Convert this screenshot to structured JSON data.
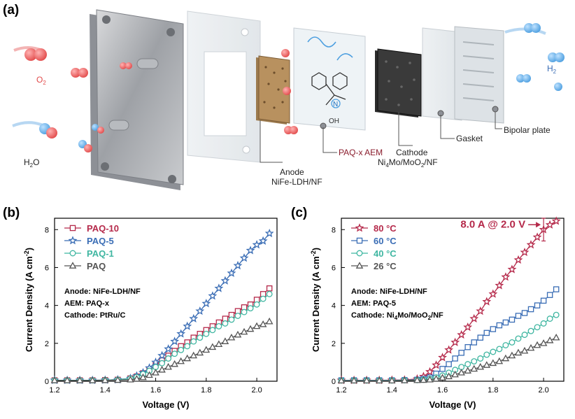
{
  "panels": {
    "a": "(a)",
    "b": "(b)",
    "c": "(c)"
  },
  "schematic": {
    "o2_label": "O",
    "o2_sub": "2",
    "h2o_label_pre": "H",
    "h2o_sub": "2",
    "h2o_label_post": "O",
    "h2_label": "H",
    "h2_sub": "2",
    "oh_label": "OH",
    "n_label": "N",
    "anode_line1": "Anode",
    "anode_line2": "NiFe-LDH/NF",
    "aem_label": "PAQ-x AEM",
    "cathode_line1": "Cathode",
    "cathode_line2_a": "Ni",
    "cathode_line2_sub1": "4",
    "cathode_line2_b": "Mo/MoO",
    "cathode_line2_sub2": "2",
    "cathode_line2_c": "/NF",
    "gasket_label": "Gasket",
    "bipolar_label": "Bipolar plate",
    "colors": {
      "red": "#e24b4b",
      "blue": "#4d9fe0",
      "aem_text": "#8a1c2c"
    }
  },
  "chart_data": [
    {
      "type": "line",
      "xlabel": "Voltage (V)",
      "ylabel_main": "Current Density (A cm",
      "ylabel_sup": "-2",
      "ylabel_end": ")",
      "xlim": [
        1.2,
        2.08
      ],
      "ylim": [
        0,
        8.6
      ],
      "xticks": [
        "1.2",
        "1.4",
        "1.6",
        "1.8",
        "2.0"
      ],
      "xtick_values": [
        1.2,
        1.4,
        1.6,
        1.8,
        2.0
      ],
      "yticks": [
        "0",
        "2",
        "4",
        "6",
        "8"
      ],
      "ytick_values": [
        0,
        2,
        4,
        6,
        8
      ],
      "annotations": [
        {
          "text": "Anode: NiFe-LDH/NF"
        },
        {
          "text": "AEM: PAQ-x"
        },
        {
          "text": "Cathode: PtRu/C"
        }
      ],
      "series": [
        {
          "name": "PAQ-10",
          "color": "#b5294a",
          "marker": "square",
          "x": [
            1.2,
            1.25,
            1.3,
            1.35,
            1.4,
            1.45,
            1.5,
            1.525,
            1.55,
            1.575,
            1.6,
            1.625,
            1.65,
            1.675,
            1.7,
            1.725,
            1.75,
            1.775,
            1.8,
            1.825,
            1.85,
            1.875,
            1.9,
            1.925,
            1.95,
            1.975,
            2.0,
            2.025,
            2.05
          ],
          "y": [
            0.05,
            0.05,
            0.05,
            0.05,
            0.06,
            0.08,
            0.15,
            0.25,
            0.42,
            0.62,
            0.85,
            1.1,
            1.35,
            1.6,
            1.85,
            2.05,
            2.3,
            2.5,
            2.7,
            2.9,
            3.1,
            3.3,
            3.5,
            3.7,
            3.9,
            4.05,
            4.3,
            4.6,
            4.9
          ]
        },
        {
          "name": "PAQ-5",
          "color": "#3a6db5",
          "marker": "star",
          "x": [
            1.2,
            1.25,
            1.3,
            1.35,
            1.4,
            1.45,
            1.5,
            1.525,
            1.55,
            1.575,
            1.6,
            1.625,
            1.65,
            1.675,
            1.7,
            1.725,
            1.75,
            1.775,
            1.8,
            1.825,
            1.85,
            1.875,
            1.9,
            1.925,
            1.95,
            1.975,
            2.0,
            2.025,
            2.05
          ],
          "y": [
            0.05,
            0.05,
            0.05,
            0.05,
            0.06,
            0.08,
            0.15,
            0.28,
            0.45,
            0.7,
            1.0,
            1.35,
            1.7,
            2.1,
            2.5,
            2.9,
            3.3,
            3.7,
            4.1,
            4.5,
            4.9,
            5.3,
            5.7,
            6.1,
            6.5,
            6.9,
            7.2,
            7.4,
            7.8
          ]
        },
        {
          "name": "PAQ-1",
          "color": "#3fb6a1",
          "marker": "circle",
          "x": [
            1.2,
            1.25,
            1.3,
            1.35,
            1.4,
            1.45,
            1.5,
            1.525,
            1.55,
            1.575,
            1.6,
            1.625,
            1.65,
            1.675,
            1.7,
            1.725,
            1.75,
            1.775,
            1.8,
            1.825,
            1.85,
            1.875,
            1.9,
            1.925,
            1.95,
            1.975,
            2.0,
            2.025,
            2.05
          ],
          "y": [
            0.05,
            0.05,
            0.05,
            0.05,
            0.06,
            0.08,
            0.14,
            0.22,
            0.38,
            0.55,
            0.75,
            0.95,
            1.2,
            1.45,
            1.65,
            1.85,
            2.1,
            2.3,
            2.5,
            2.7,
            2.9,
            3.05,
            3.25,
            3.45,
            3.65,
            3.85,
            4.05,
            4.35,
            4.6
          ]
        },
        {
          "name": "PAQ",
          "color": "#555555",
          "marker": "triangle",
          "x": [
            1.2,
            1.25,
            1.3,
            1.35,
            1.4,
            1.45,
            1.5,
            1.525,
            1.55,
            1.575,
            1.6,
            1.625,
            1.65,
            1.675,
            1.7,
            1.725,
            1.75,
            1.775,
            1.8,
            1.825,
            1.85,
            1.875,
            1.9,
            1.925,
            1.95,
            1.975,
            2.0,
            2.025,
            2.05
          ],
          "y": [
            0.04,
            0.04,
            0.04,
            0.04,
            0.05,
            0.06,
            0.08,
            0.12,
            0.2,
            0.32,
            0.45,
            0.6,
            0.75,
            0.9,
            1.05,
            1.2,
            1.35,
            1.5,
            1.65,
            1.8,
            1.95,
            2.1,
            2.3,
            2.45,
            2.6,
            2.75,
            2.9,
            3.0,
            3.15
          ]
        }
      ]
    },
    {
      "type": "line",
      "xlabel": "Voltage (V)",
      "ylabel_main": "Current Density (A cm",
      "ylabel_sup": "-2",
      "ylabel_end": ")",
      "xlim": [
        1.2,
        2.08
      ],
      "ylim": [
        0,
        8.6
      ],
      "xticks": [
        "1.2",
        "1.4",
        "1.6",
        "1.8",
        "2.0"
      ],
      "xtick_values": [
        1.2,
        1.4,
        1.6,
        1.8,
        2.0
      ],
      "yticks": [
        "0",
        "2",
        "4",
        "6",
        "8"
      ],
      "ytick_values": [
        0,
        2,
        4,
        6,
        8
      ],
      "highlight": "8.0 A @ 2.0 V",
      "highlight_color": "#b5294a",
      "annotations": [
        {
          "text": "Anode: NiFe-LDH/NF"
        },
        {
          "text": "AEM: PAQ-5"
        },
        {
          "text_pre": "Cathode: Ni",
          "sub1": "4",
          "text_mid": "Mo/MoO",
          "sub2": "2",
          "text_post": "/NF"
        }
      ],
      "series": [
        {
          "name": "80 °C",
          "color": "#b5294a",
          "marker": "star",
          "x": [
            1.2,
            1.25,
            1.3,
            1.35,
            1.4,
            1.45,
            1.5,
            1.525,
            1.55,
            1.575,
            1.6,
            1.625,
            1.65,
            1.675,
            1.7,
            1.725,
            1.75,
            1.775,
            1.8,
            1.825,
            1.85,
            1.875,
            1.9,
            1.925,
            1.95,
            1.975,
            2.0,
            2.025,
            2.05
          ],
          "y": [
            0.05,
            0.05,
            0.05,
            0.05,
            0.06,
            0.07,
            0.12,
            0.25,
            0.5,
            0.85,
            1.25,
            1.65,
            2.05,
            2.45,
            2.85,
            3.3,
            3.7,
            4.2,
            4.6,
            5.05,
            5.5,
            5.9,
            6.4,
            6.8,
            7.2,
            7.6,
            8.0,
            8.25,
            8.45
          ]
        },
        {
          "name": "60 °C",
          "color": "#3a6db5",
          "marker": "square",
          "x": [
            1.2,
            1.25,
            1.3,
            1.35,
            1.4,
            1.45,
            1.5,
            1.525,
            1.55,
            1.575,
            1.6,
            1.625,
            1.65,
            1.675,
            1.7,
            1.725,
            1.75,
            1.775,
            1.8,
            1.825,
            1.85,
            1.875,
            1.9,
            1.925,
            1.95,
            1.975,
            2.0,
            2.025,
            2.05
          ],
          "y": [
            0.05,
            0.05,
            0.05,
            0.05,
            0.05,
            0.06,
            0.08,
            0.12,
            0.2,
            0.4,
            0.65,
            0.9,
            1.2,
            1.5,
            1.8,
            2.05,
            2.3,
            2.55,
            2.75,
            2.95,
            3.1,
            3.25,
            3.45,
            3.6,
            3.8,
            4.0,
            4.25,
            4.55,
            4.85
          ]
        },
        {
          "name": "40 °C",
          "color": "#3fb6a1",
          "marker": "circle",
          "x": [
            1.2,
            1.25,
            1.3,
            1.35,
            1.4,
            1.45,
            1.5,
            1.525,
            1.55,
            1.575,
            1.6,
            1.625,
            1.65,
            1.675,
            1.7,
            1.725,
            1.75,
            1.775,
            1.8,
            1.825,
            1.85,
            1.875,
            1.9,
            1.925,
            1.95,
            1.975,
            2.0,
            2.025,
            2.05
          ],
          "y": [
            0.04,
            0.04,
            0.04,
            0.04,
            0.04,
            0.05,
            0.06,
            0.08,
            0.12,
            0.2,
            0.3,
            0.45,
            0.6,
            0.75,
            0.9,
            1.05,
            1.2,
            1.4,
            1.55,
            1.7,
            1.9,
            2.05,
            2.25,
            2.45,
            2.65,
            2.85,
            3.05,
            3.3,
            3.5
          ]
        },
        {
          "name": "26 °C",
          "color": "#555555",
          "marker": "triangle",
          "x": [
            1.2,
            1.25,
            1.3,
            1.35,
            1.4,
            1.45,
            1.5,
            1.525,
            1.55,
            1.575,
            1.6,
            1.625,
            1.65,
            1.675,
            1.7,
            1.725,
            1.75,
            1.775,
            1.8,
            1.825,
            1.85,
            1.875,
            1.9,
            1.925,
            1.95,
            1.975,
            2.0,
            2.025,
            2.05
          ],
          "y": [
            0.03,
            0.03,
            0.03,
            0.03,
            0.03,
            0.04,
            0.05,
            0.06,
            0.08,
            0.12,
            0.18,
            0.25,
            0.35,
            0.45,
            0.55,
            0.65,
            0.75,
            0.85,
            0.95,
            1.05,
            1.2,
            1.35,
            1.5,
            1.6,
            1.75,
            1.9,
            2.0,
            2.15,
            2.3
          ]
        }
      ]
    }
  ]
}
